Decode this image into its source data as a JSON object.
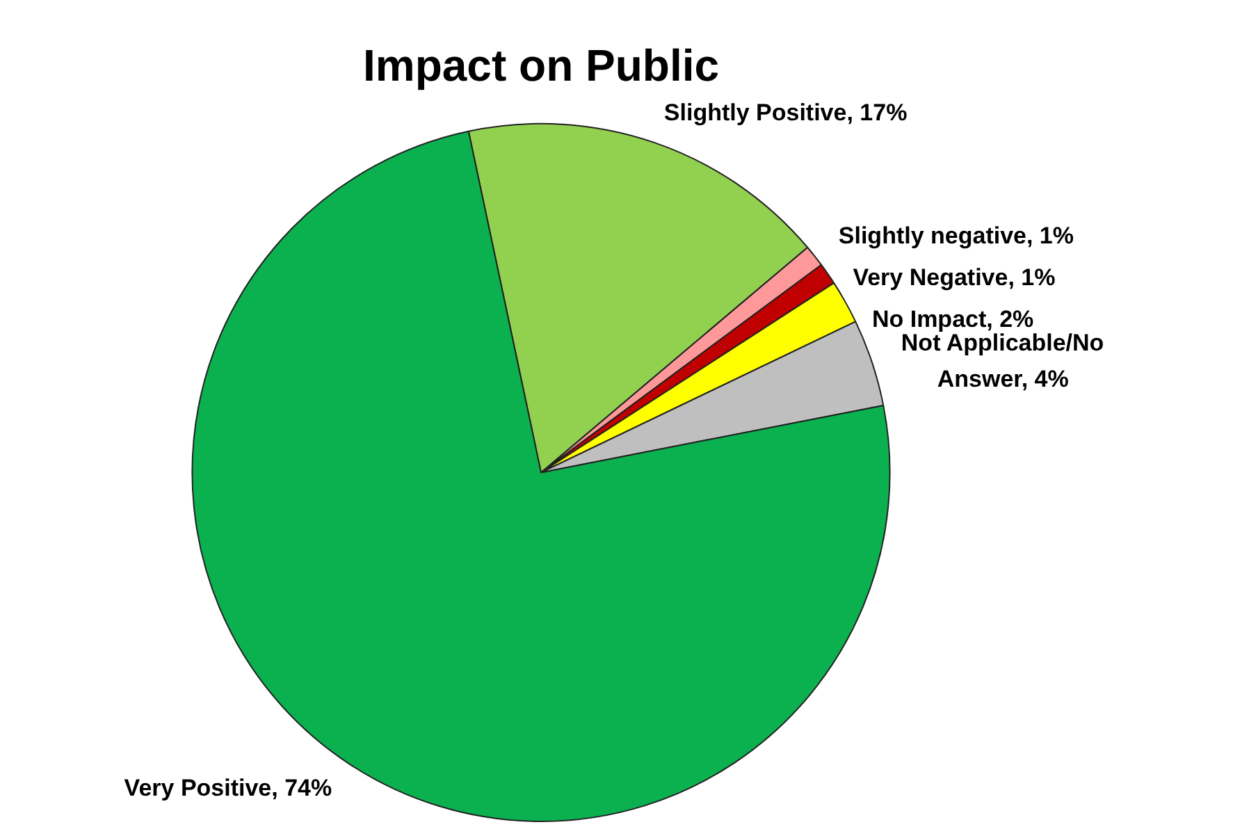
{
  "chart_data": {
    "type": "pie",
    "title": "Impact on Public",
    "categories": [
      "Slightly Positive",
      "Slightly negative",
      "Very Negative",
      "No Impact",
      "Not Applicable/No Answer",
      "Very Positive"
    ],
    "values": [
      17,
      1,
      1,
      2,
      4,
      74
    ],
    "value_labels": [
      "17%",
      "1%",
      "1%",
      "2%",
      "4%",
      "74%"
    ],
    "colors": [
      "#92d050",
      "#ff9999",
      "#c00000",
      "#ffff00",
      "#bfbfbf",
      "#0bb04f"
    ],
    "legend": false
  }
}
